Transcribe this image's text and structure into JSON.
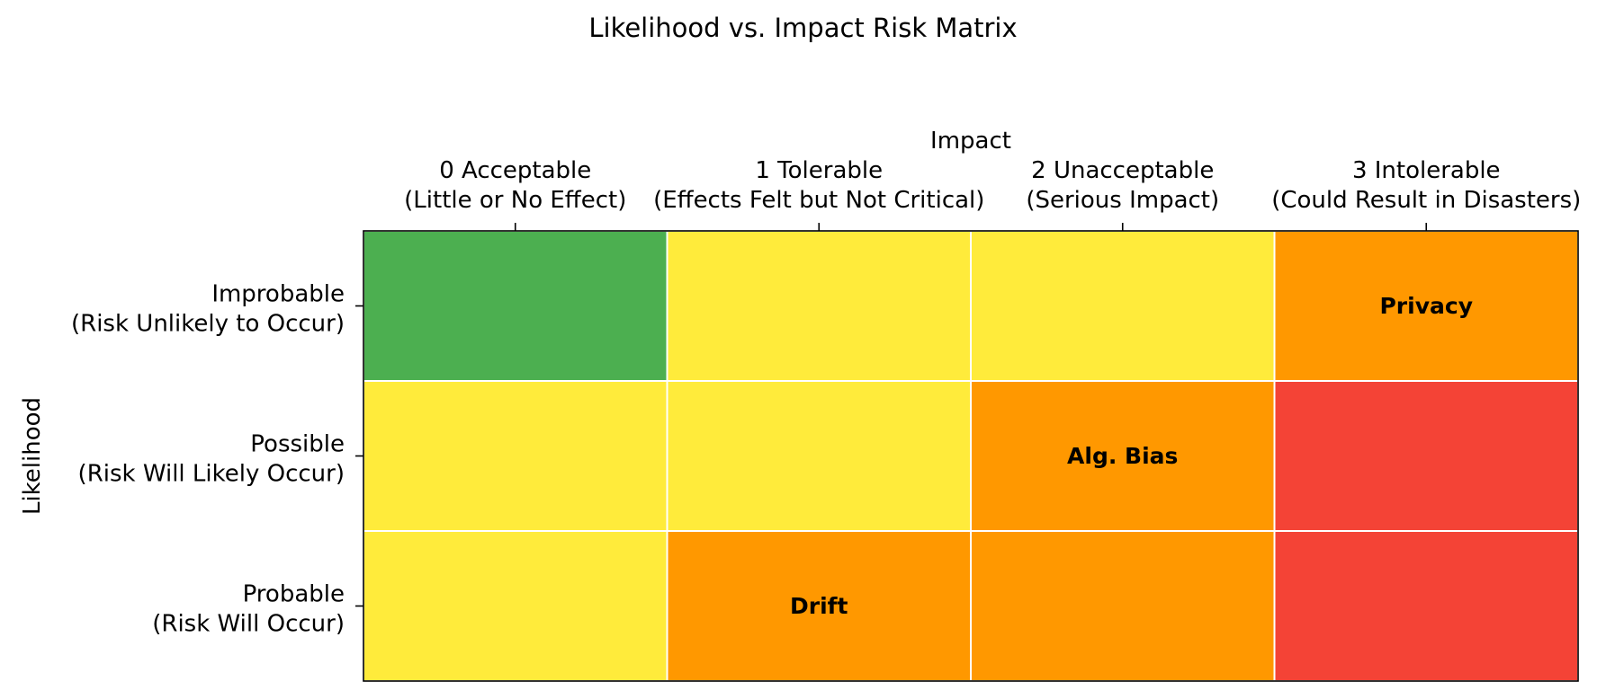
{
  "chart_data": {
    "type": "heatmap",
    "title": "Likelihood vs. Impact Risk Matrix",
    "xlabel": "Impact",
    "ylabel": "Likelihood",
    "x_axis_position": "top",
    "grid": false,
    "legend": "none",
    "x_categories": [
      [
        "0 Acceptable",
        "(Little or No Effect)"
      ],
      [
        "1 Tolerable",
        "(Effects Felt but Not Critical)"
      ],
      [
        "2 Unacceptable",
        "(Serious Impact)"
      ],
      [
        "3 Intolerable",
        "(Could Result in Disasters)"
      ]
    ],
    "y_categories": [
      [
        "Improbable",
        "(Risk Unlikely to Occur)"
      ],
      [
        "Possible",
        "(Risk Will Likely Occur)"
      ],
      [
        "Probable",
        "(Risk Will Occur)"
      ]
    ],
    "cell_colors": [
      [
        "#4caf50",
        "#ffeb3b",
        "#ffeb3b",
        "#ff9800"
      ],
      [
        "#ffeb3b",
        "#ffeb3b",
        "#ff9800",
        "#f44336"
      ],
      [
        "#ffeb3b",
        "#ff9800",
        "#ff9800",
        "#f44336"
      ]
    ],
    "cell_labels": [
      [
        "",
        "",
        "",
        "Privacy"
      ],
      [
        "",
        "",
        "Alg. Bias",
        ""
      ],
      [
        "",
        "Drift",
        "",
        ""
      ]
    ]
  }
}
